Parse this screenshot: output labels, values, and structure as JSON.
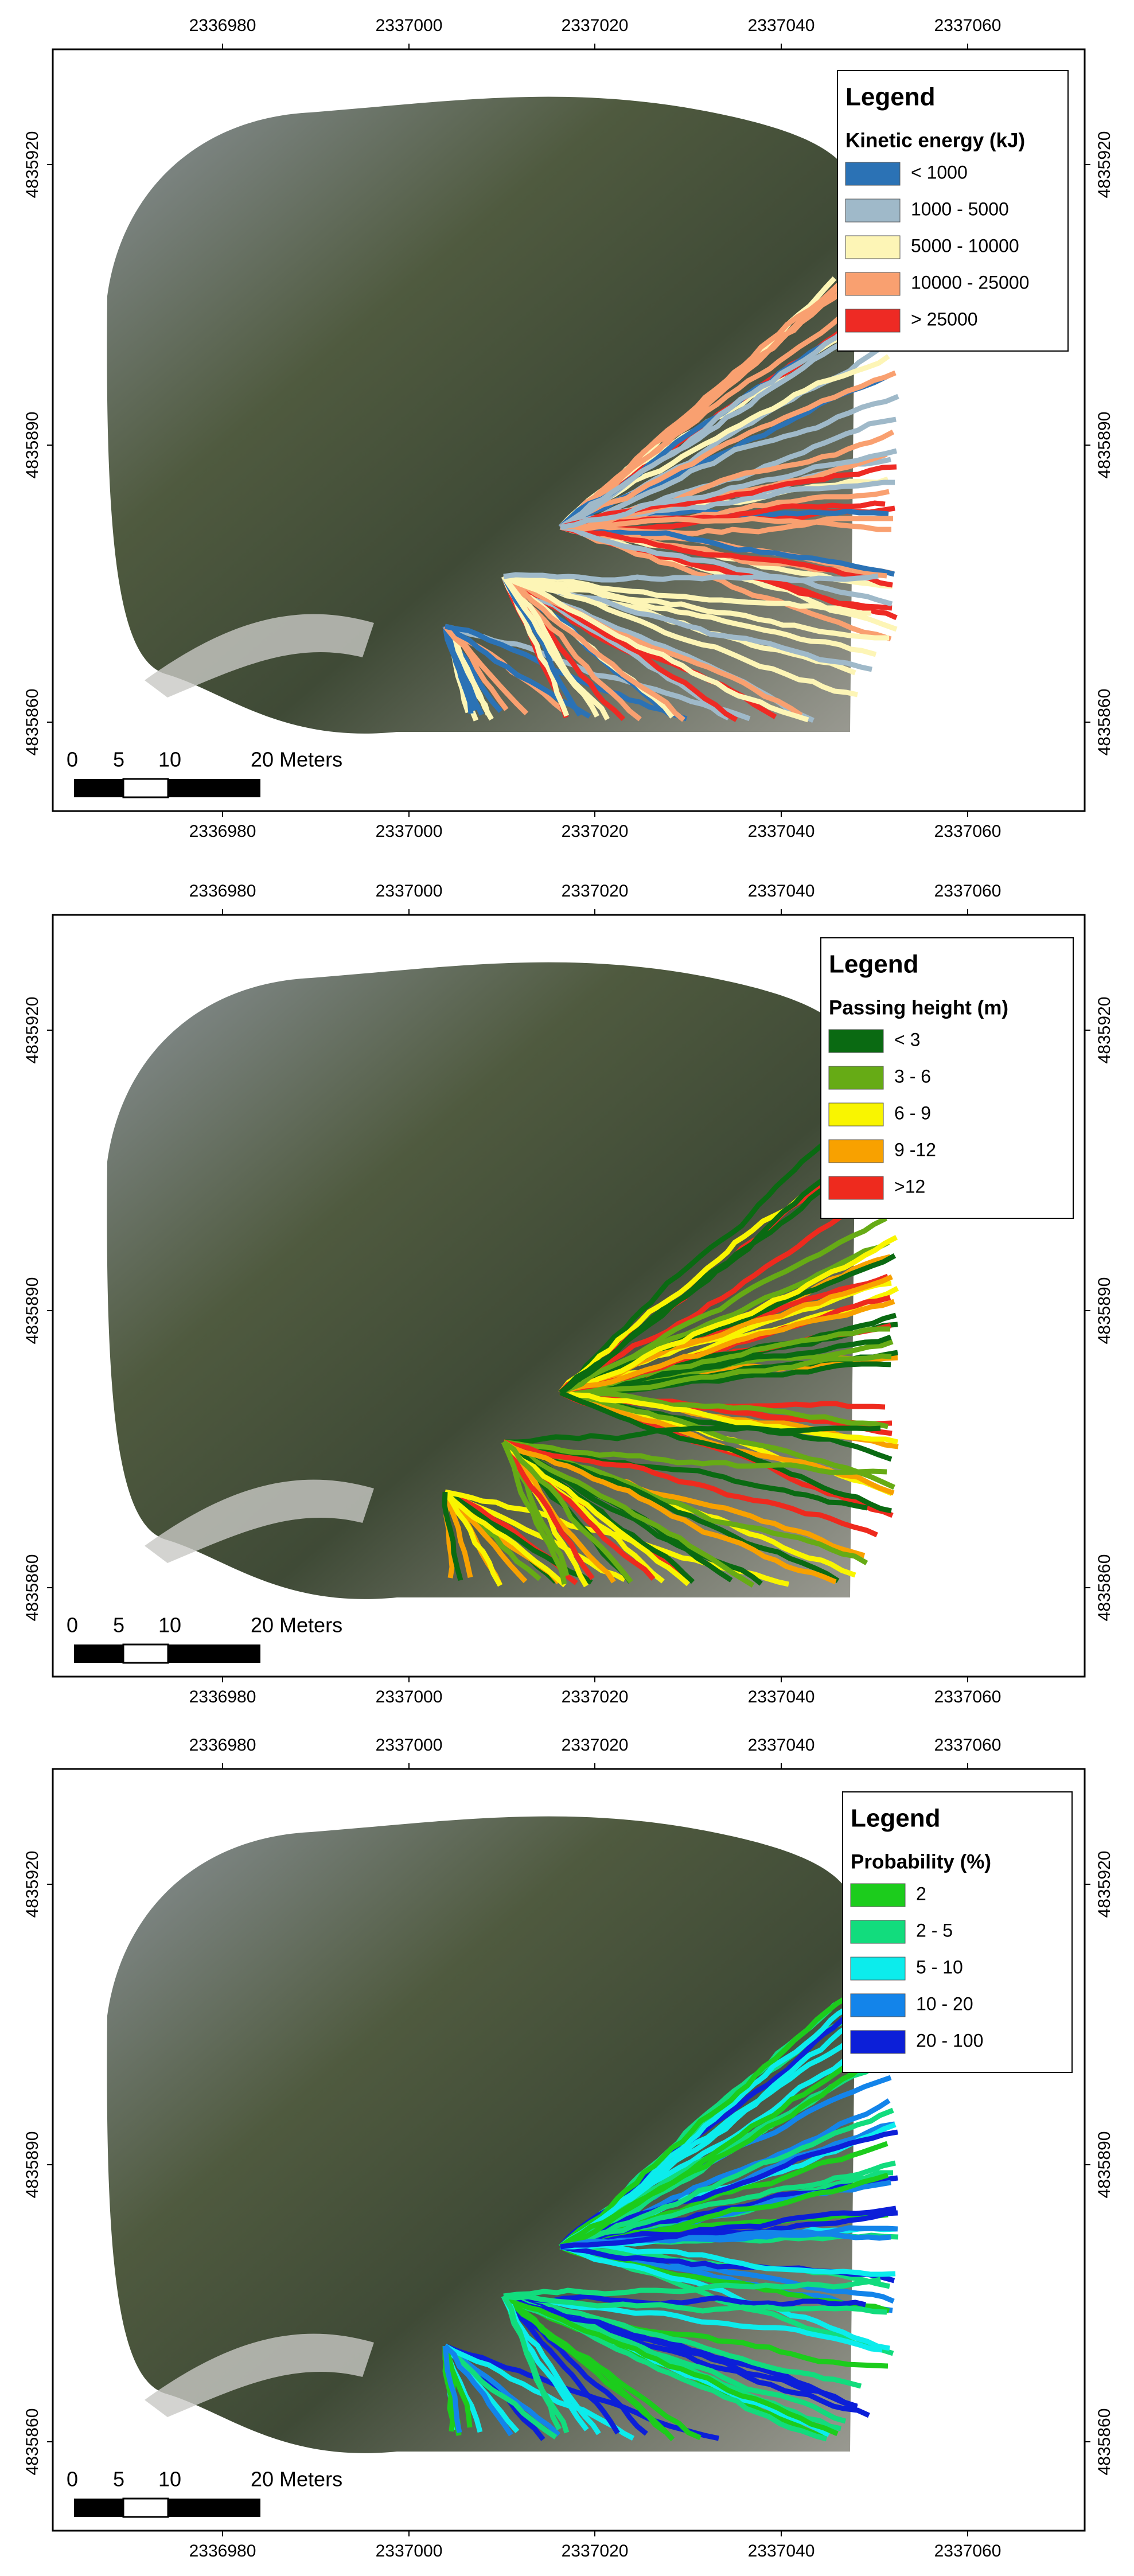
{
  "panels": [
    {
      "x_ticks": [
        "2336980",
        "2337000",
        "2337020",
        "2337040",
        "2337060"
      ],
      "y_ticks": [
        "4835920",
        "4835890",
        "4835860"
      ],
      "legend": {
        "title": "Legend",
        "subtitle": "Kinetic energy (kJ)",
        "items": [
          {
            "label": "< 1000",
            "color": "#2b72b5"
          },
          {
            "label": "1000 - 5000",
            "color": "#9fb9c9"
          },
          {
            "label": "5000 - 10000",
            "color": "#fdf5b6"
          },
          {
            "label": "10000 - 25000",
            "color": "#f9a070"
          },
          {
            "label": "> 25000",
            "color": "#ee2a24"
          }
        ]
      },
      "scale_bar": [
        "0",
        "5",
        "10",
        "20 Meters"
      ]
    },
    {
      "x_ticks": [
        "2336980",
        "2337000",
        "2337020",
        "2337040",
        "2337060"
      ],
      "y_ticks": [
        "4835920",
        "4835890",
        "4835860"
      ],
      "legend": {
        "title": "Legend",
        "subtitle": "Passing height (m)",
        "items": [
          {
            "label": "< 3",
            "color": "#0a6a12"
          },
          {
            "label": "3 - 6",
            "color": "#66ab15"
          },
          {
            "label": "6 - 9",
            "color": "#f9f500"
          },
          {
            "label": "9 -12",
            "color": "#f8a100"
          },
          {
            "label": ">12",
            "color": "#ee2a1e"
          }
        ]
      },
      "scale_bar": [
        "0",
        "5",
        "10",
        "20 Meters"
      ]
    },
    {
      "x_ticks": [
        "2336980",
        "2337000",
        "2337020",
        "2337040",
        "2337060"
      ],
      "y_ticks": [
        "4835920",
        "4835890",
        "4835860"
      ],
      "legend": {
        "title": "Legend",
        "subtitle": "Probability (%)",
        "items": [
          {
            "label": "2",
            "color": "#1ccc1c"
          },
          {
            "label": "2 - 5",
            "color": "#12dc7d"
          },
          {
            "label": "5 - 10",
            "color": "#0cecec"
          },
          {
            "label": "10 - 20",
            "color": "#1384ea"
          },
          {
            "label": "20 - 100",
            "color": "#0c1fd8"
          }
        ]
      },
      "scale_bar": [
        "0",
        "5",
        "10",
        "20 Meters"
      ]
    }
  ]
}
